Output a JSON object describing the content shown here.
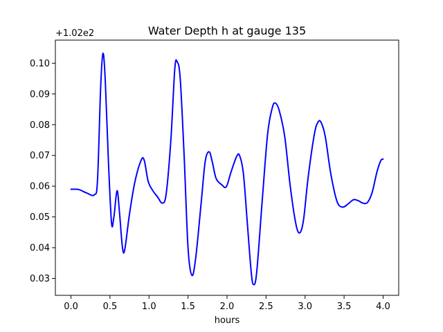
{
  "chart_data": {
    "type": "line",
    "title": "Water Depth h at gauge 135",
    "xlabel": "hours",
    "ylabel": "",
    "offset_label": "+1.02e2",
    "xlim": [
      -0.2,
      4.2
    ],
    "ylim": [
      0.0245,
      0.1075
    ],
    "x_ticks": [
      0.0,
      0.5,
      1.0,
      1.5,
      2.0,
      2.5,
      3.0,
      3.5,
      4.0
    ],
    "x_tick_labels": [
      "0.0",
      "0.5",
      "1.0",
      "1.5",
      "2.0",
      "2.5",
      "3.0",
      "3.5",
      "4.0"
    ],
    "y_ticks": [
      0.03,
      0.04,
      0.05,
      0.06,
      0.07,
      0.08,
      0.09,
      0.1
    ],
    "y_tick_labels": [
      "0.03",
      "0.04",
      "0.05",
      "0.06",
      "0.07",
      "0.08",
      "0.09",
      "0.10"
    ],
    "grid": false,
    "line_color": "#0000ff",
    "series": [
      {
        "points": [
          [
            0.0,
            0.059
          ],
          [
            0.1,
            0.0589
          ],
          [
            0.2,
            0.0578
          ],
          [
            0.3,
            0.0572
          ],
          [
            0.34,
            0.062
          ],
          [
            0.38,
            0.092
          ],
          [
            0.41,
            0.1032
          ],
          [
            0.44,
            0.094
          ],
          [
            0.48,
            0.068
          ],
          [
            0.52,
            0.048
          ],
          [
            0.55,
            0.05
          ],
          [
            0.59,
            0.0585
          ],
          [
            0.62,
            0.052
          ],
          [
            0.66,
            0.04
          ],
          [
            0.69,
            0.0395
          ],
          [
            0.75,
            0.051
          ],
          [
            0.82,
            0.0615
          ],
          [
            0.9,
            0.0685
          ],
          [
            0.94,
            0.0683
          ],
          [
            0.99,
            0.0615
          ],
          [
            1.05,
            0.0585
          ],
          [
            1.11,
            0.0565
          ],
          [
            1.17,
            0.0545
          ],
          [
            1.22,
            0.0575
          ],
          [
            1.28,
            0.075
          ],
          [
            1.33,
            0.098
          ],
          [
            1.36,
            0.1005
          ],
          [
            1.4,
            0.095
          ],
          [
            1.45,
            0.07
          ],
          [
            1.5,
            0.04
          ],
          [
            1.55,
            0.031
          ],
          [
            1.6,
            0.037
          ],
          [
            1.67,
            0.055
          ],
          [
            1.72,
            0.068
          ],
          [
            1.77,
            0.0712
          ],
          [
            1.81,
            0.068
          ],
          [
            1.86,
            0.0625
          ],
          [
            1.93,
            0.0605
          ],
          [
            1.99,
            0.0598
          ],
          [
            2.05,
            0.0645
          ],
          [
            2.12,
            0.0695
          ],
          [
            2.16,
            0.07
          ],
          [
            2.21,
            0.064
          ],
          [
            2.26,
            0.048
          ],
          [
            2.31,
            0.032
          ],
          [
            2.34,
            0.028
          ],
          [
            2.38,
            0.032
          ],
          [
            2.45,
            0.055
          ],
          [
            2.52,
            0.077
          ],
          [
            2.58,
            0.0855
          ],
          [
            2.62,
            0.087
          ],
          [
            2.67,
            0.0845
          ],
          [
            2.74,
            0.076
          ],
          [
            2.81,
            0.06
          ],
          [
            2.88,
            0.048
          ],
          [
            2.93,
            0.0448
          ],
          [
            2.98,
            0.049
          ],
          [
            3.04,
            0.063
          ],
          [
            3.12,
            0.077
          ],
          [
            3.17,
            0.081
          ],
          [
            3.21,
            0.0805
          ],
          [
            3.26,
            0.076
          ],
          [
            3.33,
            0.064
          ],
          [
            3.41,
            0.055
          ],
          [
            3.48,
            0.0532
          ],
          [
            3.55,
            0.0542
          ],
          [
            3.62,
            0.0556
          ],
          [
            3.68,
            0.0553
          ],
          [
            3.74,
            0.0545
          ],
          [
            3.8,
            0.0547
          ],
          [
            3.86,
            0.058
          ],
          [
            3.92,
            0.0645
          ],
          [
            3.97,
            0.0683
          ],
          [
            4.0,
            0.0688
          ]
        ]
      }
    ]
  }
}
